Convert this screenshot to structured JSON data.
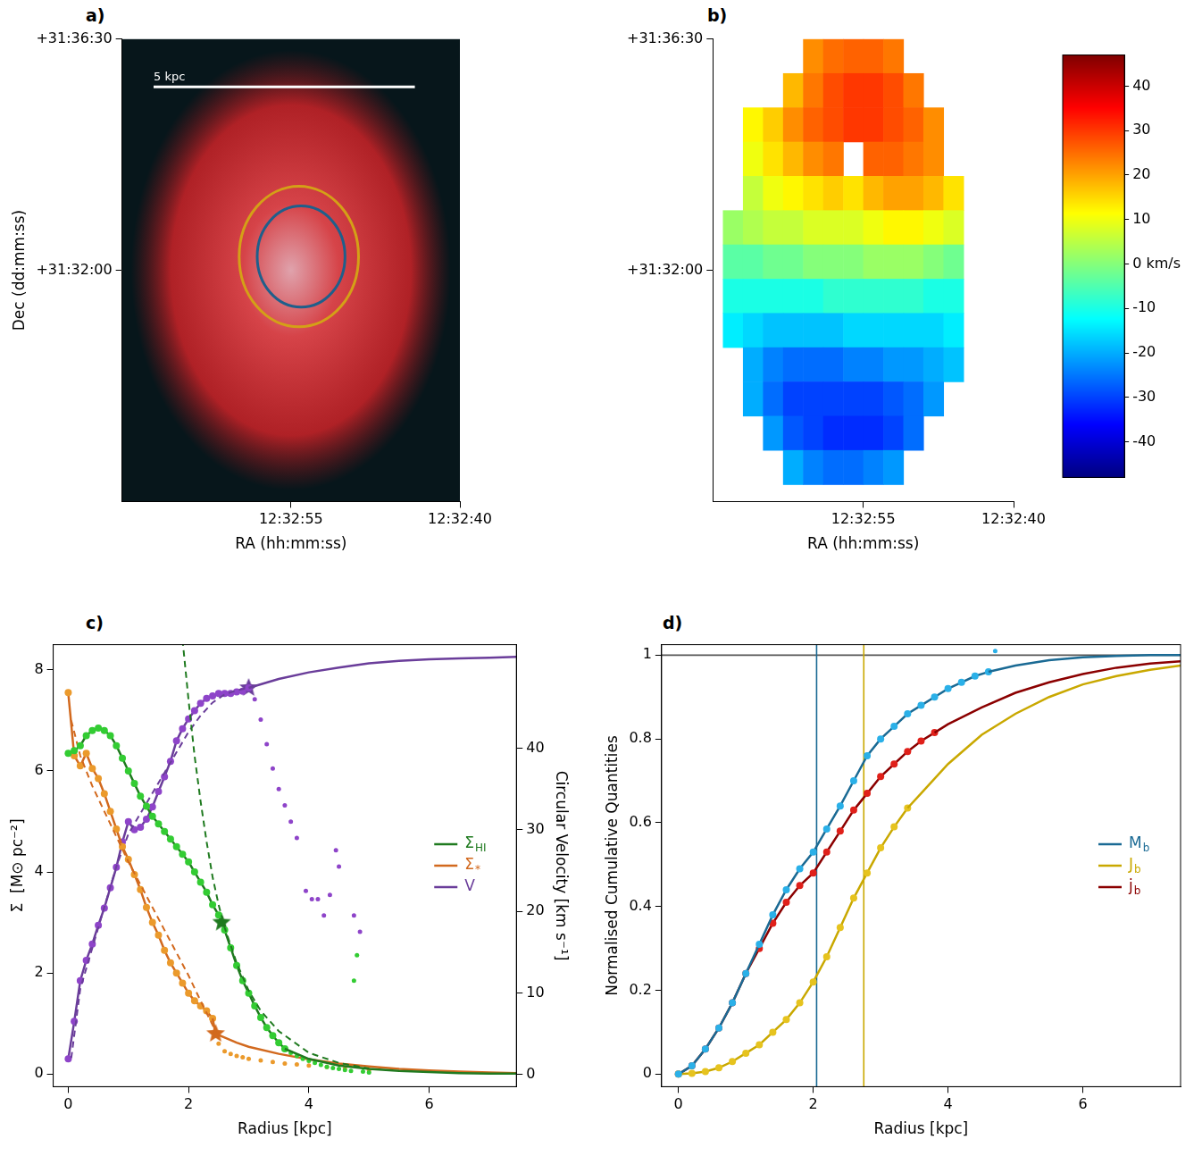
{
  "chart_data": [
    {
      "type": "image",
      "panel": "a)",
      "xlabel": "RA (hh:mm:ss)",
      "ylabel": "Dec (dd:mm:ss)",
      "xlim": [
        45190,
        45160
      ],
      "xticks": [
        {
          "value": 45175,
          "label": "12:32:55"
        },
        {
          "value": 45160,
          "label": "12:32:40"
        }
      ],
      "ylim": [
        113250,
        113790
      ],
      "yticks": [
        {
          "value": 113790,
          "label": "+31:36:30"
        },
        {
          "value": 113520,
          "label": "+31:32:00"
        }
      ],
      "grid": false,
      "emission": {
        "x": 45175,
        "y": 113520,
        "rx": 14.2,
        "ry": 257
      },
      "ellipses": [
        {
          "x": 45174.1,
          "y": 113536,
          "rx": 3.9,
          "ry": 59,
          "color": "#1f5f8b"
        },
        {
          "x": 45174.3,
          "y": 113536,
          "rx": 5.3,
          "ry": 82,
          "color": "#d4a017"
        }
      ],
      "scale_bar": {
        "x": [
          45187.2,
          45164.0
        ],
        "y": 113734,
        "label": "5 kpc",
        "color": "#ffffff"
      }
    },
    {
      "type": "heatmap",
      "panel": "b)",
      "xlabel": "RA (hh:mm:ss)",
      "xlim": [
        45190,
        45160
      ],
      "xticks": [
        {
          "value": 45175,
          "label": "12:32:55"
        },
        {
          "value": 45160,
          "label": "12:32:40"
        }
      ],
      "ylim": [
        113250,
        113790
      ],
      "yticks": [
        {
          "value": 113790,
          "label": "+31:36:30"
        },
        {
          "value": 113520,
          "label": "+31:32:00"
        }
      ],
      "grid": false,
      "cells": {
        "x": [
          45188,
          45186,
          45184,
          45182,
          45180,
          45178,
          45176,
          45174,
          45172,
          45170,
          45168,
          45166,
          45164
        ],
        "y": [
          113770,
          113730,
          113690,
          113650,
          113610,
          113570,
          113530,
          113490,
          113450,
          113410,
          113370,
          113330,
          113290
        ],
        "values": [
          [
            null,
            null,
            null,
            null,
            22,
            25,
            26,
            26,
            24,
            null,
            null,
            null,
            null
          ],
          [
            null,
            null,
            null,
            18,
            24,
            28,
            30,
            30,
            28,
            24,
            null,
            null,
            null
          ],
          [
            null,
            12,
            16,
            22,
            26,
            28,
            30,
            30,
            28,
            26,
            22,
            null,
            null
          ],
          [
            null,
            10,
            14,
            18,
            22,
            24,
            null,
            26,
            26,
            24,
            22,
            null,
            null
          ],
          [
            null,
            6,
            10,
            12,
            14,
            16,
            14,
            18,
            20,
            20,
            18,
            14,
            null
          ],
          [
            2,
            4,
            6,
            6,
            8,
            8,
            8,
            10,
            12,
            12,
            10,
            8,
            null
          ],
          [
            -4,
            -4,
            -2,
            -2,
            0,
            0,
            0,
            2,
            2,
            2,
            0,
            -2,
            null
          ],
          [
            -10,
            -10,
            -10,
            -10,
            -10,
            -8,
            -8,
            -8,
            -8,
            -8,
            -10,
            -10,
            null
          ],
          [
            -14,
            -16,
            -18,
            -18,
            -18,
            -18,
            -16,
            -16,
            -16,
            -16,
            -16,
            -14,
            null
          ],
          [
            null,
            -20,
            -24,
            -26,
            -26,
            -26,
            -24,
            -24,
            -22,
            -22,
            -20,
            -18,
            null
          ],
          [
            null,
            -20,
            -26,
            -30,
            -30,
            -30,
            -30,
            -30,
            -28,
            -26,
            -22,
            null,
            null
          ],
          [
            null,
            null,
            -22,
            -28,
            -30,
            -32,
            -32,
            -32,
            -30,
            -26,
            null,
            null,
            null
          ],
          [
            null,
            null,
            null,
            -20,
            -24,
            -26,
            -26,
            -24,
            -22,
            null,
            null,
            null,
            null
          ]
        ]
      },
      "colorbar": {
        "lim": [
          -48,
          47
        ],
        "ticks": [
          40,
          30,
          20,
          10,
          {
            "value": 0,
            "label": "0 km/s"
          },
          -10,
          -20,
          -30,
          -40
        ]
      }
    },
    {
      "type": "line",
      "panel": "c)",
      "xlabel": "Radius [kpc]",
      "ylabel": "Σ  [M⊙ pc⁻²]",
      "y2label": "Circular Velocity [km s⁻¹]",
      "xlim": [
        -0.25,
        7.45
      ],
      "xticks": [
        0,
        2,
        4,
        6
      ],
      "ylim": [
        -0.25,
        8.5
      ],
      "yticks": [
        0,
        2,
        4,
        6,
        8
      ],
      "y2lim": [
        -1.5,
        52.7
      ],
      "y2ticks": [
        0,
        10,
        20,
        30,
        40
      ],
      "grid": false,
      "legend": "right",
      "series": [
        {
          "name": "ΣHI",
          "color": "#1f7a1f",
          "point_color": "#33cc33",
          "axis": "y",
          "x": [
            0,
            0.1,
            0.2,
            0.3,
            0.4,
            0.5,
            0.6,
            0.7,
            0.8,
            0.9,
            1.0,
            1.1,
            1.2,
            1.3,
            1.4,
            1.5,
            1.6,
            1.7,
            1.8,
            1.9,
            2.0,
            2.1,
            2.2,
            2.3,
            2.4,
            2.5,
            2.6,
            2.7,
            2.8,
            2.9,
            3.0,
            3.1,
            3.2,
            3.3,
            3.4,
            3.5,
            3.6
          ],
          "values": [
            6.35,
            6.4,
            6.5,
            6.7,
            6.8,
            6.85,
            6.8,
            6.7,
            6.5,
            6.25,
            6.0,
            5.75,
            5.5,
            5.3,
            5.1,
            4.95,
            4.8,
            4.65,
            4.5,
            4.35,
            4.2,
            4.0,
            3.8,
            3.6,
            3.35,
            3.15,
            2.85,
            2.5,
            2.15,
            1.85,
            1.6,
            1.35,
            1.12,
            0.92,
            0.76,
            0.62,
            0.5
          ],
          "tail_x": [
            3.6,
            4.0,
            4.5,
            5.0,
            5.5,
            6.0,
            6.5,
            7.0,
            7.45
          ],
          "tail": [
            0.5,
            0.3,
            0.17,
            0.1,
            0.06,
            0.04,
            0.02,
            0.01,
            0.01
          ],
          "fit_x": [
            1.9,
            2.0,
            2.1,
            2.2,
            2.3,
            2.4,
            2.5,
            2.6,
            2.8,
            3.0,
            3.2,
            3.5,
            4.0,
            4.5,
            5.0
          ],
          "fit": [
            8.6,
            7.4,
            6.3,
            5.4,
            4.6,
            3.9,
            3.35,
            2.9,
            2.2,
            1.65,
            1.25,
            0.85,
            0.42,
            0.22,
            0.11
          ],
          "outer_x": [
            3.7,
            3.8,
            3.9,
            4.0,
            4.1,
            4.2,
            4.3,
            4.4,
            4.5,
            4.6,
            4.7,
            4.75,
            4.8,
            4.9,
            5.0
          ],
          "outer": [
            0.42,
            0.36,
            0.3,
            0.26,
            0.22,
            0.18,
            0.14,
            0.12,
            0.1,
            0.08,
            0.06,
            1.85,
            2.35,
            0.05,
            0.03
          ],
          "star": [
            2.55,
            3.0
          ]
        },
        {
          "name": "Σ*",
          "color": "#d2691e",
          "point_color": "#eb9a2c",
          "axis": "y",
          "x": [
            0,
            0.1,
            0.2,
            0.3,
            0.4,
            0.5,
            0.6,
            0.7,
            0.8,
            0.9,
            1.0,
            1.1,
            1.2,
            1.3,
            1.4,
            1.5,
            1.6,
            1.7,
            1.8,
            1.9,
            2.0,
            2.1,
            2.2,
            2.3,
            2.4
          ],
          "values": [
            7.55,
            6.3,
            6.1,
            6.35,
            6.05,
            5.85,
            5.55,
            5.2,
            4.85,
            4.5,
            4.25,
            3.95,
            3.65,
            3.3,
            3.0,
            2.75,
            2.45,
            2.2,
            2.0,
            1.8,
            1.6,
            1.45,
            1.35,
            1.25,
            1.1
          ],
          "tail_x": [
            2.4,
            2.45,
            2.8,
            3.0,
            3.5,
            4.0,
            4.5,
            5.0,
            5.5,
            6.0,
            6.5,
            7.0,
            7.45
          ],
          "tail": [
            1.1,
            0.8,
            0.62,
            0.54,
            0.4,
            0.29,
            0.21,
            0.15,
            0.1,
            0.07,
            0.05,
            0.03,
            0.02
          ],
          "fit_x": [
            0.05,
            0.2,
            0.4,
            0.6,
            0.8,
            1.0,
            1.2,
            1.4,
            1.6,
            1.8,
            2.0,
            2.2,
            2.45
          ],
          "fit": [
            7.0,
            6.3,
            5.7,
            5.2,
            4.7,
            4.2,
            3.75,
            3.3,
            2.85,
            2.4,
            1.95,
            1.45,
            0.85
          ],
          "outer_x": [
            2.5,
            2.6,
            2.7,
            2.8,
            2.9,
            3.0,
            3.2,
            3.4,
            3.6,
            3.8,
            4.0,
            4.3,
            4.6,
            5.0
          ],
          "outer": [
            0.6,
            0.45,
            0.4,
            0.36,
            0.33,
            0.3,
            0.27,
            0.24,
            0.21,
            0.19,
            0.17,
            0.14,
            0.11,
            0.08
          ],
          "star": [
            2.45,
            0.8
          ]
        },
        {
          "name": "V",
          "color": "#6a3d9a",
          "point_color": "#8e44c9",
          "axis": "y2",
          "x": [
            0,
            0.1,
            0.2,
            0.3,
            0.4,
            0.5,
            0.6,
            0.7,
            0.8,
            0.9,
            1.0,
            1.1,
            1.2,
            1.3,
            1.4,
            1.5,
            1.6,
            1.7,
            1.8,
            1.9,
            2.0,
            2.1,
            2.2,
            2.3,
            2.4,
            2.5,
            2.6,
            2.7,
            2.8,
            2.9,
            3.0
          ],
          "values": [
            1.9,
            6.5,
            11.5,
            14,
            16,
            18.3,
            20.4,
            22.9,
            25.4,
            28.5,
            31,
            30,
            30.3,
            31.3,
            32.8,
            34.7,
            36.5,
            38.4,
            40.9,
            42.4,
            43.6,
            44.6,
            45.5,
            46.1,
            46.4,
            46.7,
            46.7,
            46.7,
            46.9,
            47,
            47.4
          ],
          "tail_x": [
            3.0,
            3.5,
            4.0,
            4.5,
            5.0,
            5.5,
            6.0,
            6.5,
            7.0,
            7.45
          ],
          "tail": [
            47.4,
            48.5,
            49.3,
            49.9,
            50.4,
            50.7,
            50.9,
            51.0,
            51.1,
            51.2
          ],
          "fit_x": [
            0.05,
            0.2,
            0.4,
            0.6,
            0.8,
            1.0,
            1.2,
            1.4,
            1.6,
            1.8,
            2.0,
            2.2,
            2.4,
            2.6,
            2.8,
            3.0
          ],
          "fit": [
            2,
            10.5,
            15.5,
            20.5,
            25.5,
            29.5,
            32,
            34.5,
            37,
            39.5,
            42,
            44,
            45.6,
            46.6,
            47.1,
            47.4
          ],
          "outer_x": [
            3.1,
            3.2,
            3.3,
            3.4,
            3.5,
            3.6,
            3.7,
            3.8,
            3.95,
            4.05,
            4.15,
            4.25,
            4.35,
            4.45,
            4.5,
            4.75,
            4.85
          ],
          "outer": [
            46,
            43.5,
            40.5,
            37.5,
            35,
            33,
            31,
            29,
            22.5,
            21.5,
            21.5,
            19.5,
            22,
            27.5,
            25.5,
            19.5,
            17.5
          ],
          "star": [
            3.0,
            47.4
          ]
        }
      ]
    },
    {
      "type": "line",
      "panel": "d)",
      "xlabel": "Radius [kpc]",
      "ylabel": "Normalised Cumulative Quantities",
      "xlim": [
        -0.25,
        7.45
      ],
      "xticks": [
        0,
        2,
        4,
        6
      ],
      "ylim": [
        -0.03,
        1.025
      ],
      "yticks": [
        0,
        0.2,
        0.4,
        0.6,
        0.8,
        1
      ],
      "grid": false,
      "legend": "right",
      "hlines": [
        {
          "y": 1,
          "color": "#555555"
        }
      ],
      "vlines": [
        {
          "x": 2.05,
          "color": "#1a6a94"
        },
        {
          "x": 2.75,
          "color": "#c9a800"
        }
      ],
      "series": [
        {
          "name": "Mb",
          "color": "#1a6a94",
          "point_color": "#2ab0e8",
          "x": [
            0,
            0.2,
            0.4,
            0.6,
            0.8,
            1.0,
            1.2,
            1.4,
            1.6,
            1.8,
            2.0,
            2.2,
            2.4,
            2.6,
            2.8,
            3.0,
            3.2,
            3.4,
            3.6,
            3.8,
            4.0,
            4.2,
            4.4,
            4.6
          ],
          "values": [
            0,
            0.02,
            0.06,
            0.11,
            0.17,
            0.24,
            0.31,
            0.38,
            0.44,
            0.49,
            0.53,
            0.585,
            0.64,
            0.7,
            0.76,
            0.8,
            0.83,
            0.86,
            0.88,
            0.9,
            0.92,
            0.935,
            0.95,
            0.96
          ],
          "tail_x": [
            4.6,
            5.0,
            5.5,
            6.0,
            6.5,
            7.0,
            7.45
          ],
          "tail": [
            0.96,
            0.975,
            0.988,
            0.995,
            0.998,
            1.0,
            1.0
          ],
          "outer_x": [
            4.7
          ],
          "outer": [
            1.01
          ]
        },
        {
          "name": "Jb",
          "color": "#c9a800",
          "point_color": "#e6c31e",
          "x": [
            0,
            0.2,
            0.4,
            0.6,
            0.8,
            1.0,
            1.2,
            1.4,
            1.6,
            1.8,
            2.0,
            2.2,
            2.4,
            2.6,
            2.8,
            3.0,
            3.2,
            3.4
          ],
          "values": [
            0,
            0.002,
            0.006,
            0.015,
            0.03,
            0.05,
            0.07,
            0.1,
            0.13,
            0.17,
            0.22,
            0.28,
            0.35,
            0.42,
            0.48,
            0.54,
            0.59,
            0.635
          ],
          "tail_x": [
            3.4,
            3.6,
            4.0,
            4.5,
            5.0,
            5.5,
            6.0,
            6.5,
            7.0,
            7.45
          ],
          "tail": [
            0.635,
            0.67,
            0.74,
            0.81,
            0.86,
            0.9,
            0.93,
            0.95,
            0.965,
            0.975
          ]
        },
        {
          "name": "jb",
          "color": "#8b0000",
          "point_color": "#e0201a",
          "x": [
            0,
            0.2,
            0.4,
            0.6,
            0.8,
            1.0,
            1.2,
            1.4,
            1.6,
            1.8,
            2.0,
            2.2,
            2.4,
            2.6,
            2.8,
            3.0,
            3.2,
            3.4,
            3.6,
            3.8
          ],
          "values": [
            0,
            0.02,
            0.06,
            0.11,
            0.17,
            0.24,
            0.3,
            0.36,
            0.41,
            0.45,
            0.48,
            0.53,
            0.58,
            0.63,
            0.67,
            0.71,
            0.74,
            0.77,
            0.795,
            0.815
          ],
          "tail_x": [
            3.8,
            4.0,
            4.5,
            5.0,
            5.5,
            6.0,
            6.5,
            7.0,
            7.45
          ],
          "tail": [
            0.815,
            0.835,
            0.875,
            0.91,
            0.935,
            0.955,
            0.97,
            0.98,
            0.985
          ]
        }
      ]
    }
  ]
}
